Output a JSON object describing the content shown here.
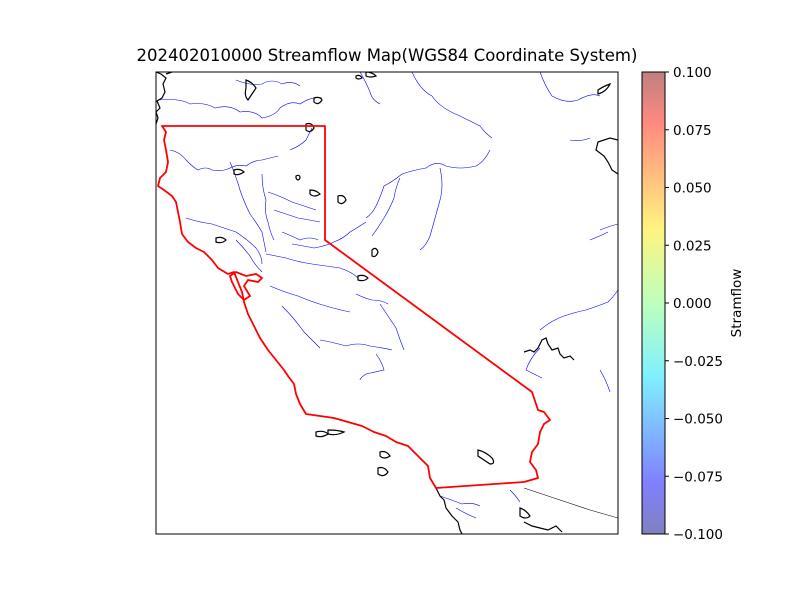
{
  "title": "202402010000 Streamflow Map(WGS84 Coordinate System)",
  "colorbar": {
    "label": "Stramflow",
    "ticks": [
      "0.100",
      "0.075",
      "0.050",
      "0.025",
      "0.000",
      "−0.025",
      "−0.050",
      "−0.075",
      "−0.100"
    ],
    "colormap": "jet",
    "alpha": 0.5,
    "range": [
      -0.1,
      0.1
    ]
  },
  "colors": {
    "state_border": "#ff0000",
    "coastline": "#000000",
    "rivers": "#0000ff",
    "national_border": "#000000"
  }
}
